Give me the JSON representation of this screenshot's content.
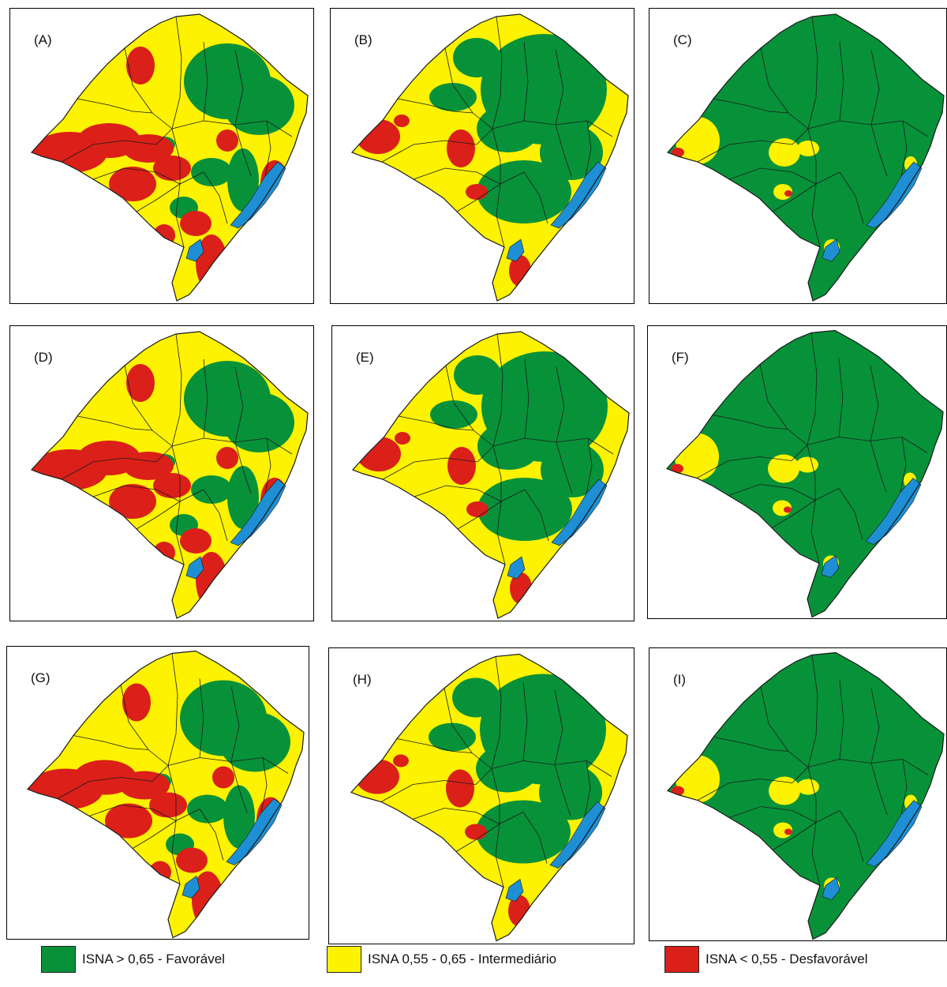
{
  "colors": {
    "favoravel": "#079239",
    "intermediario": "#fdf200",
    "desfavoravel": "#da2019",
    "water": "#1e8fd4",
    "border": "#1a1a1a"
  },
  "legend": [
    {
      "label": "ISNA > 0,65 - Favorável",
      "color": "#079239"
    },
    {
      "label": "ISNA  0,55 - 0,65 - Intermediário",
      "color": "#fdf200"
    },
    {
      "label": "ISNA < 0,55 - Desfavorável",
      "color": "#da2019"
    }
  ],
  "panels": [
    {
      "label": "(A)",
      "base": "yellow",
      "level": "high-risk"
    },
    {
      "label": "(B)",
      "base": "yellow",
      "level": "medium-risk"
    },
    {
      "label": "(C)",
      "base": "green",
      "level": "low-risk"
    },
    {
      "label": "(D)",
      "base": "yellow",
      "level": "high-risk"
    },
    {
      "label": "(E)",
      "base": "yellow",
      "level": "medium-risk"
    },
    {
      "label": "(F)",
      "base": "green",
      "level": "low-risk"
    },
    {
      "label": "(G)",
      "base": "yellow",
      "level": "high-risk"
    },
    {
      "label": "(H)",
      "base": "yellow",
      "level": "medium-risk"
    },
    {
      "label": "(I)",
      "base": "green",
      "level": "low-risk"
    }
  ]
}
